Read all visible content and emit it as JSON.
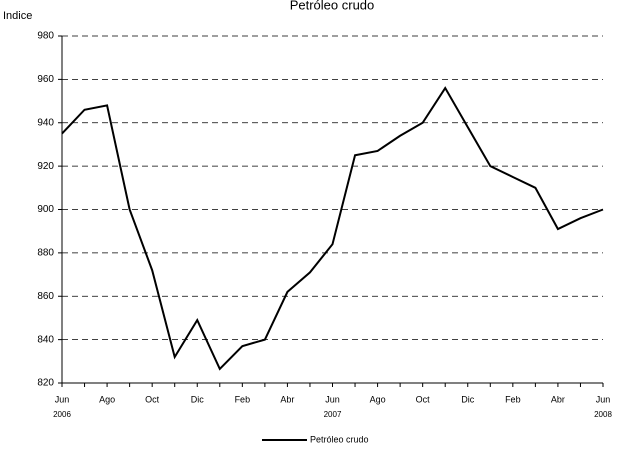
{
  "chart_data": {
    "type": "line",
    "title": "Petróleo crudo",
    "y_label": "Indice",
    "categories": [
      "Jun",
      null,
      "Ago",
      null,
      "Oct",
      null,
      "Dic",
      null,
      "Feb",
      null,
      "Abr",
      null,
      "Jun",
      null,
      "Ago",
      null,
      "Oct",
      null,
      "Dic",
      null,
      "Feb",
      null,
      "Abr",
      null,
      "Jun"
    ],
    "category_years": [
      "2006",
      null,
      null,
      null,
      null,
      null,
      null,
      null,
      null,
      null,
      null,
      null,
      "2007",
      null,
      null,
      null,
      null,
      null,
      null,
      null,
      null,
      null,
      null,
      null,
      "2008"
    ],
    "series": [
      {
        "name": "Petróleo crudo",
        "color": "#000000",
        "values": [
          935,
          946,
          948,
          900,
          872,
          832,
          849,
          826.5,
          837,
          840,
          862,
          871,
          884,
          925,
          927,
          934,
          940,
          956,
          938,
          920,
          915,
          910,
          891,
          896,
          900
        ]
      }
    ],
    "ylim": [
      820,
      980
    ],
    "yticks": [
      820,
      840,
      860,
      880,
      900,
      920,
      940,
      960,
      980
    ],
    "grid": true,
    "legend": "bottom"
  }
}
